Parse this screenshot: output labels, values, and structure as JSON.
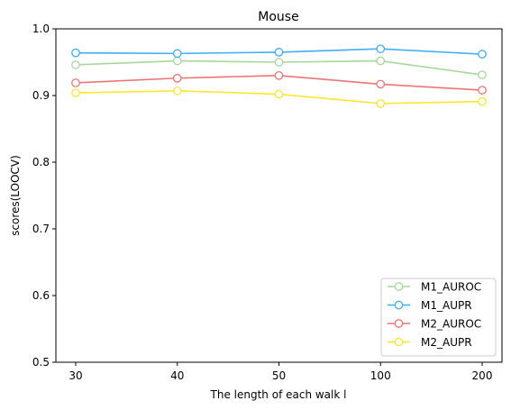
{
  "chart_data": {
    "type": "line",
    "title": "Mouse",
    "xlabel": "The length of each walk l",
    "ylabel": "scores(LOOCV)",
    "categories": [
      "30",
      "40",
      "50",
      "100",
      "200"
    ],
    "ylim": [
      0.5,
      1.0
    ],
    "yticks": [
      "0.5",
      "0.6",
      "0.7",
      "0.8",
      "0.9",
      "1.0"
    ],
    "grid": false,
    "legend_position": "lower-right",
    "series": [
      {
        "name": "M1_AUROC",
        "color": "#a6d89b",
        "values": [
          0.946,
          0.952,
          0.95,
          0.952,
          0.931
        ]
      },
      {
        "name": "M1_AUPR",
        "color": "#3daff4",
        "values": [
          0.964,
          0.963,
          0.965,
          0.97,
          0.962
        ]
      },
      {
        "name": "M2_AUROC",
        "color": "#ee7474",
        "values": [
          0.919,
          0.926,
          0.93,
          0.917,
          0.908
        ]
      },
      {
        "name": "M2_AUPR",
        "color": "#fde72b",
        "values": [
          0.904,
          0.907,
          0.902,
          0.888,
          0.891
        ]
      }
    ]
  }
}
